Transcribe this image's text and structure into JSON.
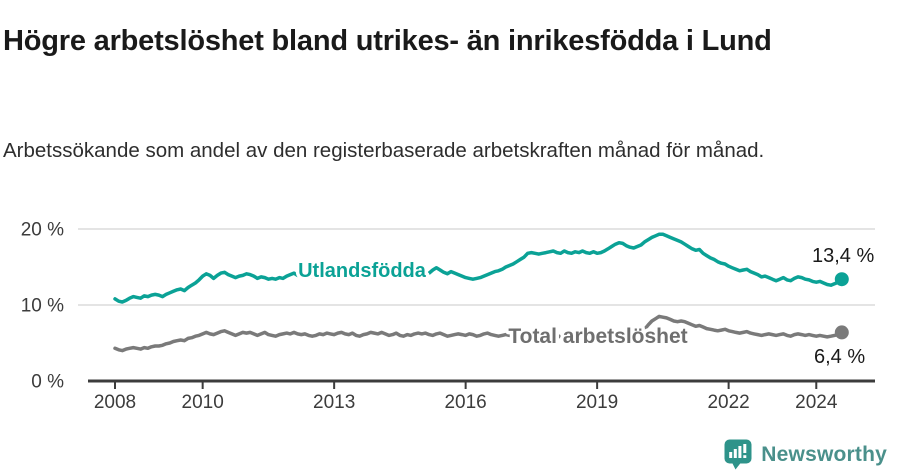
{
  "header": {
    "title": "Högre arbetslöshet bland utrikes- än inrikesfödda i Lund",
    "subtitle": "Arbetssökande som andel av den registerbaserade arbetskraften månad för månad."
  },
  "chart_data": {
    "type": "line",
    "unit": "percent of registered labour force",
    "x_start": "2008-01",
    "x_end": "2024-08",
    "x_interval": "monthly",
    "ylim": [
      0,
      20
    ],
    "grid": "horizontal-light",
    "legend_position": "inline-labels-on-lines",
    "yticks": [
      {
        "value": 0,
        "label": "0 %"
      },
      {
        "value": 10,
        "label": "10 %"
      },
      {
        "value": 20,
        "label": "20 %"
      }
    ],
    "xticks": [
      {
        "value": 2008,
        "label": "2008"
      },
      {
        "value": 2010,
        "label": "2010"
      },
      {
        "value": 2013,
        "label": "2013"
      },
      {
        "value": 2016,
        "label": "2016"
      },
      {
        "value": 2019,
        "label": "2019"
      },
      {
        "value": 2022,
        "label": "2022"
      },
      {
        "value": 2024,
        "label": "2024"
      }
    ],
    "series": [
      {
        "name": "Utlandsfödda",
        "id": "utlandsfodda",
        "color": "#0ba296",
        "end_value": 13.4,
        "end_value_label": "13,4 %",
        "values": [
          10.8,
          10.5,
          10.4,
          10.6,
          10.9,
          11.1,
          11.0,
          10.9,
          11.2,
          11.1,
          11.3,
          11.4,
          11.3,
          11.1,
          11.4,
          11.6,
          11.8,
          12.0,
          12.1,
          11.9,
          12.3,
          12.6,
          12.9,
          13.3,
          13.8,
          14.1,
          13.9,
          13.5,
          13.9,
          14.2,
          14.3,
          14.0,
          13.8,
          13.6,
          13.8,
          13.9,
          14.1,
          14.0,
          13.8,
          13.5,
          13.7,
          13.6,
          13.4,
          13.5,
          13.4,
          13.6,
          13.5,
          13.8,
          14.0,
          14.2,
          13.9,
          13.8,
          14.0,
          13.9,
          13.7,
          13.8,
          14.0,
          13.9,
          14.1,
          14.0,
          13.9,
          14.1,
          13.8,
          13.7,
          13.9,
          14.0,
          13.8,
          13.7,
          13.9,
          13.8,
          14.0,
          13.9,
          14.0,
          13.8,
          13.7,
          13.9,
          13.8,
          14.0,
          13.9,
          13.7,
          13.9,
          14.0,
          14.1,
          14.0,
          14.1,
          14.0,
          14.2,
          14.6,
          14.9,
          14.6,
          14.3,
          14.1,
          14.4,
          14.2,
          14.0,
          13.8,
          13.6,
          13.5,
          13.4,
          13.5,
          13.6,
          13.8,
          14.0,
          14.2,
          14.4,
          14.5,
          14.7,
          15.0,
          15.2,
          15.4,
          15.7,
          16.0,
          16.3,
          16.8,
          16.9,
          16.8,
          16.7,
          16.8,
          16.9,
          17.0,
          17.1,
          16.9,
          16.8,
          17.1,
          16.9,
          16.8,
          17.0,
          16.9,
          17.1,
          16.9,
          16.8,
          17.0,
          16.8,
          16.9,
          17.1,
          17.4,
          17.7,
          18.0,
          18.2,
          18.1,
          17.8,
          17.6,
          17.5,
          17.7,
          17.9,
          18.3,
          18.6,
          18.9,
          19.1,
          19.3,
          19.3,
          19.1,
          18.9,
          18.7,
          18.5,
          18.3,
          18.0,
          17.7,
          17.4,
          17.2,
          17.3,
          16.8,
          16.5,
          16.2,
          16.0,
          15.7,
          15.5,
          15.4,
          15.1,
          14.9,
          14.7,
          14.5,
          14.6,
          14.7,
          14.4,
          14.2,
          14.0,
          13.7,
          13.8,
          13.6,
          13.4,
          13.2,
          13.4,
          13.6,
          13.3,
          13.2,
          13.5,
          13.7,
          13.6,
          13.4,
          13.3,
          13.1,
          13.0,
          13.1,
          12.9,
          12.7,
          12.6,
          12.8,
          13.0,
          13.4
        ]
      },
      {
        "name": "Total arbetslöshet",
        "id": "total-arbetsloshet",
        "color": "#7a7a7a",
        "label_color": "#6f6f6f",
        "end_value": 6.4,
        "end_value_label": "6,4 %",
        "values": [
          4.3,
          4.1,
          4.0,
          4.2,
          4.3,
          4.4,
          4.3,
          4.2,
          4.4,
          4.3,
          4.5,
          4.6,
          4.6,
          4.7,
          4.9,
          5.0,
          5.2,
          5.3,
          5.4,
          5.3,
          5.6,
          5.7,
          5.9,
          6.0,
          6.2,
          6.4,
          6.2,
          6.1,
          6.3,
          6.5,
          6.6,
          6.4,
          6.2,
          6.0,
          6.2,
          6.4,
          6.3,
          6.4,
          6.2,
          6.0,
          6.2,
          6.4,
          6.1,
          6.0,
          5.9,
          6.1,
          6.2,
          6.3,
          6.2,
          6.4,
          6.2,
          6.1,
          6.2,
          6.0,
          5.9,
          6.0,
          6.2,
          6.1,
          6.3,
          6.2,
          6.1,
          6.3,
          6.4,
          6.2,
          6.1,
          6.3,
          6.0,
          5.9,
          6.1,
          6.2,
          6.4,
          6.3,
          6.2,
          6.4,
          6.2,
          6.0,
          6.1,
          6.3,
          6.0,
          5.9,
          6.1,
          6.0,
          6.2,
          6.3,
          6.2,
          6.3,
          6.1,
          6.0,
          6.2,
          6.3,
          6.1,
          5.9,
          6.0,
          6.1,
          6.2,
          6.1,
          6.0,
          6.2,
          6.1,
          5.9,
          6.0,
          6.2,
          6.3,
          6.1,
          6.0,
          5.9,
          6.0,
          6.1,
          6.0,
          6.1,
          5.9,
          5.8,
          6.0,
          6.1,
          6.2,
          6.0,
          5.9,
          5.8,
          5.9,
          6.0,
          5.9,
          6.0,
          5.8,
          5.7,
          5.9,
          6.0,
          6.1,
          5.9,
          5.8,
          5.9,
          6.0,
          6.1,
          6.0,
          6.1,
          5.9,
          6.0,
          6.2,
          6.3,
          6.4,
          6.2,
          6.1,
          6.2,
          6.3,
          6.5,
          6.6,
          6.8,
          7.4,
          7.9,
          8.2,
          8.5,
          8.4,
          8.3,
          8.1,
          7.9,
          7.8,
          7.9,
          7.8,
          7.6,
          7.4,
          7.2,
          7.3,
          7.1,
          6.9,
          6.8,
          6.7,
          6.6,
          6.7,
          6.8,
          6.6,
          6.5,
          6.4,
          6.3,
          6.4,
          6.5,
          6.3,
          6.2,
          6.1,
          6.0,
          6.1,
          6.2,
          6.1,
          6.0,
          6.1,
          6.2,
          6.0,
          5.9,
          6.1,
          6.2,
          6.1,
          6.0,
          6.1,
          6.0,
          5.9,
          6.0,
          5.9,
          5.8,
          5.9,
          6.0,
          6.1,
          6.4
        ]
      }
    ],
    "styling": {
      "axis_color": "#3c3c3c",
      "gridline_color": "#dcdcdc",
      "value_label_color": "#1a1a1a"
    }
  },
  "footer": {
    "brand": "Newsworthy",
    "brand_color": "#4a908b",
    "icon_color": "#2e938a"
  }
}
